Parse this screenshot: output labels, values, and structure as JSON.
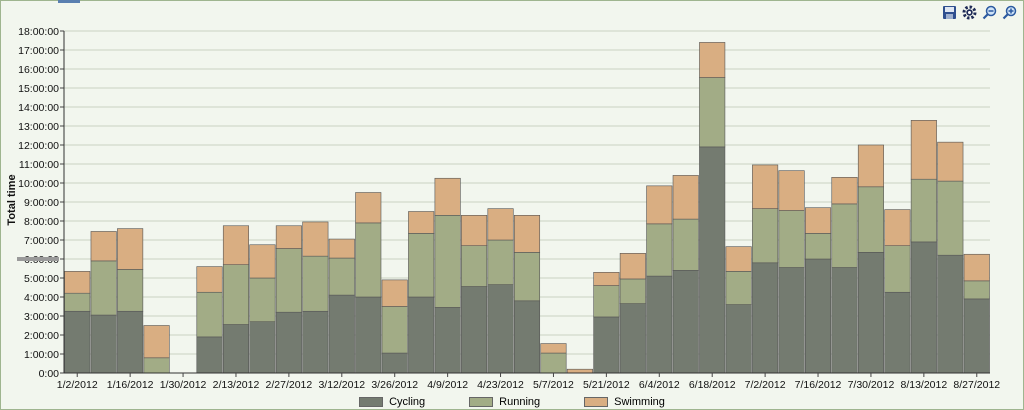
{
  "toolbar": {
    "buttons": [
      {
        "icon": "save-icon"
      },
      {
        "icon": "settings-icon"
      },
      {
        "icon": "zoom-out-icon"
      },
      {
        "icon": "zoom-in-icon"
      }
    ]
  },
  "colors": {
    "cycling": "#747b70",
    "running": "#a2ac86",
    "swimming": "#d9ae82"
  },
  "chart_data": {
    "type": "bar",
    "stacked": true,
    "ylabel": "Total time",
    "xlabel": "",
    "ylim": [
      0,
      18
    ],
    "y_unit": "hours",
    "y_ticks": [
      "0:00",
      "1:00:00",
      "2:00:00",
      "3:00:00",
      "4:00:00",
      "5:00:00",
      "6:00:00",
      "7:00:00",
      "8:00:00",
      "9:00:00",
      "10:00:00",
      "11:00:00",
      "12:00:00",
      "13:00:00",
      "14:00:00",
      "15:00:00",
      "16:00:00",
      "17:00:00",
      "18:00:00"
    ],
    "x_tick_labels": [
      "1/2/2012",
      "1/16/2012",
      "1/30/2012",
      "2/13/2012",
      "2/27/2012",
      "3/12/2012",
      "3/26/2012",
      "4/9/2012",
      "4/23/2012",
      "5/7/2012",
      "5/21/2012",
      "6/4/2012",
      "6/18/2012",
      "7/2/2012",
      "7/16/2012",
      "7/30/2012",
      "8/13/2012",
      "8/27/2012"
    ],
    "categories": [
      "1/2/2012",
      "1/9/2012",
      "1/16/2012",
      "1/23/2012",
      "1/30/2012",
      "2/6/2012",
      "2/13/2012",
      "2/20/2012",
      "2/27/2012",
      "3/5/2012",
      "3/12/2012",
      "3/19/2012",
      "3/26/2012",
      "4/2/2012",
      "4/9/2012",
      "4/16/2012",
      "4/23/2012",
      "4/30/2012",
      "5/7/2012",
      "5/14/2012",
      "5/21/2012",
      "5/28/2012",
      "6/4/2012",
      "6/11/2012",
      "6/18/2012",
      "6/25/2012",
      "7/2/2012",
      "7/9/2012",
      "7/16/2012",
      "7/23/2012",
      "7/30/2012",
      "8/6/2012",
      "8/13/2012",
      "8/20/2012",
      "8/27/2012"
    ],
    "series": [
      {
        "name": "Cycling",
        "values": [
          3.25,
          3.05,
          3.25,
          0,
          0,
          1.9,
          2.55,
          2.7,
          3.2,
          3.25,
          4.1,
          4.0,
          1.05,
          4.0,
          3.45,
          4.55,
          4.65,
          3.8,
          0,
          0,
          2.95,
          3.65,
          5.1,
          5.4,
          11.9,
          3.6,
          5.8,
          5.55,
          6.0,
          5.55,
          6.35,
          4.25,
          6.9,
          6.2,
          3.9
        ]
      },
      {
        "name": "Running",
        "values": [
          0.95,
          2.85,
          2.2,
          0.8,
          0,
          2.35,
          3.15,
          2.3,
          3.35,
          2.9,
          1.95,
          3.9,
          2.45,
          3.35,
          4.85,
          2.15,
          2.35,
          2.55,
          1.05,
          0,
          1.65,
          1.3,
          2.75,
          2.7,
          3.65,
          1.75,
          2.85,
          3.0,
          1.35,
          3.35,
          3.45,
          2.45,
          3.3,
          3.9,
          0.95
        ]
      },
      {
        "name": "Swimming",
        "values": [
          1.15,
          1.55,
          2.15,
          1.7,
          0,
          1.35,
          2.05,
          1.75,
          1.2,
          1.8,
          1.0,
          1.6,
          1.4,
          1.15,
          1.95,
          1.6,
          1.65,
          1.95,
          0.5,
          0.2,
          0.7,
          1.35,
          2.0,
          2.3,
          1.85,
          1.3,
          2.3,
          2.1,
          1.35,
          1.4,
          2.2,
          1.9,
          3.1,
          2.05,
          1.4
        ]
      }
    ],
    "legend": {
      "position": "bottom",
      "entries": [
        "Cycling",
        "Running",
        "Swimming"
      ]
    },
    "grid": true
  }
}
